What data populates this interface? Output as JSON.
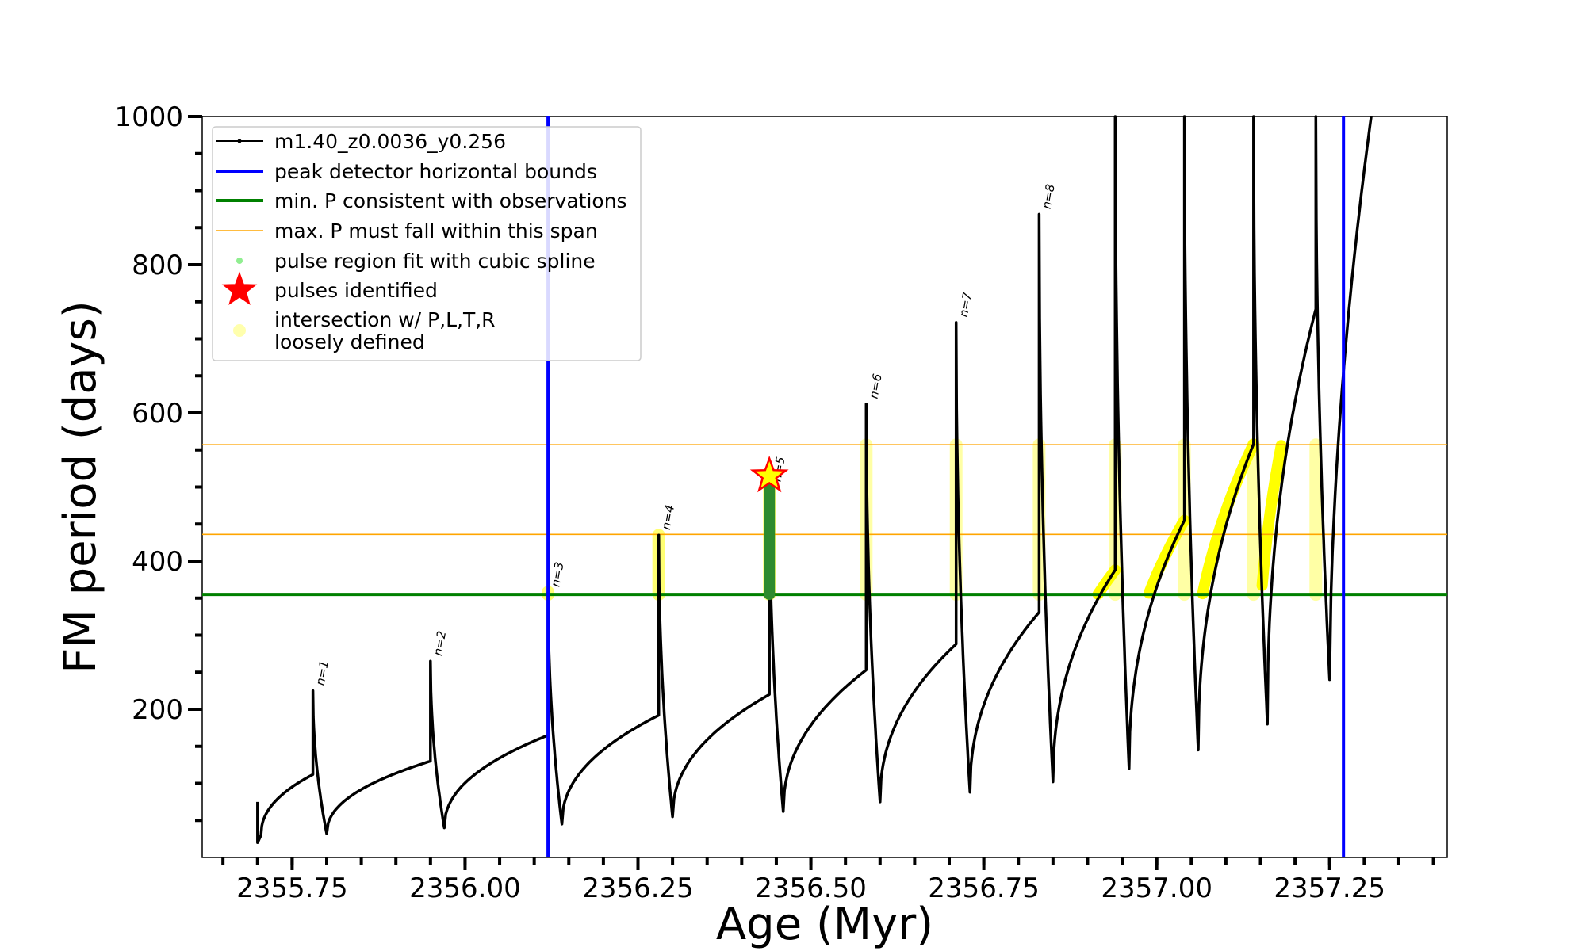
{
  "chart_data": {
    "type": "line",
    "xlabel": "Age (Myr)",
    "ylabel": "FM period (days)",
    "xlim": [
      2355.62,
      2357.42
    ],
    "ylim": [
      0,
      1000
    ],
    "x_ticks": [
      2355.75,
      2356.0,
      2356.25,
      2356.5,
      2356.75,
      2357.0,
      2357.25
    ],
    "x_tick_labels": [
      "2355.75",
      "2356.00",
      "2356.25",
      "2356.50",
      "2356.75",
      "2357.00",
      "2357.25"
    ],
    "y_ticks": [
      200,
      400,
      600,
      800,
      1000
    ],
    "y_tick_labels": [
      "200",
      "400",
      "600",
      "800",
      "1000"
    ],
    "grid": false,
    "legend_position": "upper-left",
    "legend": [
      {
        "label": "m1.40_z0.0036_y0.256",
        "kind": "line-dot",
        "color": "#000000"
      },
      {
        "label": "peak detector horizontal bounds",
        "kind": "line",
        "color": "#0000ff"
      },
      {
        "label": "min. P consistent with observations",
        "kind": "line",
        "color": "#008000"
      },
      {
        "label": "max. P must fall within this span",
        "kind": "thin-line",
        "color": "#ffa500"
      },
      {
        "label": "pulse region fit with cubic spline",
        "kind": "dot",
        "color": "#90ee90"
      },
      {
        "label": "pulses identified",
        "kind": "star",
        "color": "#ff0000"
      },
      {
        "label": "intersection w/ P,L,T,R",
        "label2": "loosely defined",
        "kind": "circle",
        "color": "#ffff99"
      }
    ],
    "vertical_bounds": [
      2356.12,
      2357.27
    ],
    "min_P": 355,
    "max_P_span": [
      436,
      557
    ],
    "pulses": [
      {
        "n": "n=1",
        "x": 2355.78,
        "base_before": 112,
        "spike": 225,
        "min": 32
      },
      {
        "n": "n=2",
        "x": 2355.95,
        "base_before": 130,
        "spike": 265,
        "min": 40
      },
      {
        "n": "n=3",
        "x": 2356.12,
        "base_before": 165,
        "spike": 358,
        "min": 45
      },
      {
        "n": "n=4",
        "x": 2356.28,
        "base_before": 192,
        "spike": 435,
        "min": 55
      },
      {
        "n": "n=5",
        "x": 2356.44,
        "base_before": 220,
        "spike": 500,
        "min": 62
      },
      {
        "n": "n=6",
        "x": 2356.58,
        "base_before": 253,
        "spike": 612,
        "min": 75
      },
      {
        "n": "n=7",
        "x": 2356.71,
        "base_before": 288,
        "spike": 722,
        "min": 88
      },
      {
        "n": "n=8",
        "x": 2356.83,
        "base_before": 331,
        "spike": 868,
        "min": 102
      },
      {
        "n": "",
        "x": 2356.94,
        "base_before": 388,
        "spike": 1000,
        "min": 120
      },
      {
        "n": "",
        "x": 2357.04,
        "base_before": 455,
        "spike": 1000,
        "min": 145
      },
      {
        "n": "",
        "x": 2357.14,
        "base_before": 558,
        "spike": 1000,
        "min": 180
      },
      {
        "n": "",
        "x": 2357.23,
        "base_before": 740,
        "spike": 1000,
        "min": 240
      }
    ],
    "start_point": {
      "x": 2355.7,
      "y": 30
    },
    "end_point": {
      "x": 2357.31,
      "y": 1000
    },
    "pulse_identified": {
      "label": "n=5",
      "x": 2356.44,
      "y": 515
    }
  }
}
